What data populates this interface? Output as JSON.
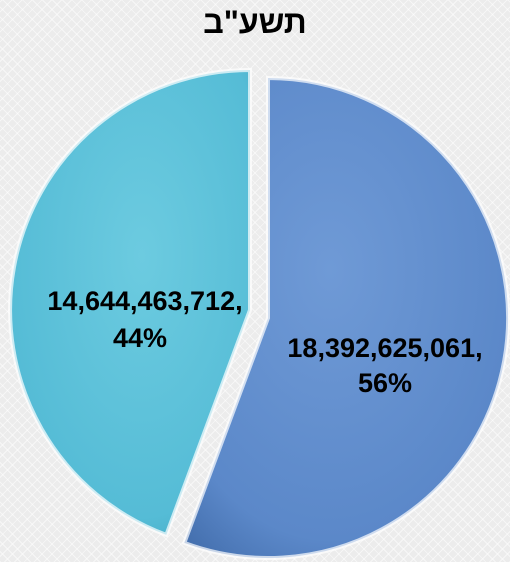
{
  "chart_data": {
    "type": "pie",
    "title": "תשע\"ב",
    "slices": [
      {
        "label": "18,392,625,061,",
        "value": 18392625061,
        "percent_label": "56%",
        "color": "#5b88c9"
      },
      {
        "label": "14,644,463,712,",
        "value": 14644463712,
        "percent_label": "44%",
        "color": "#55bcd6"
      }
    ],
    "legend": "none"
  }
}
